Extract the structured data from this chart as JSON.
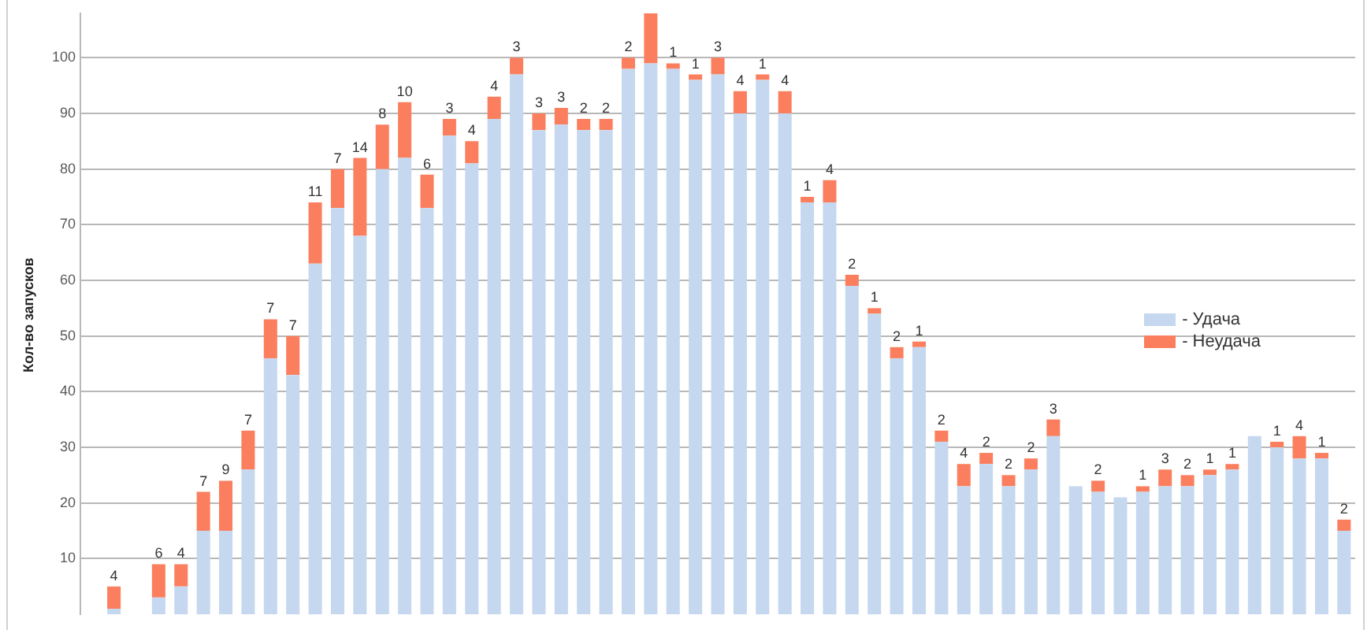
{
  "chart_data": {
    "type": "bar",
    "stacked": true,
    "ylabel": "Кол-во запусков",
    "categories": [
      null,
      null,
      null,
      null,
      null,
      null,
      null,
      null,
      null,
      null,
      null,
      null,
      null,
      null,
      null,
      null,
      null,
      null,
      null,
      null,
      null,
      null,
      null,
      null,
      null,
      null,
      null,
      null,
      null,
      null,
      null,
      null,
      null,
      null,
      null,
      null,
      null,
      null,
      null,
      null,
      null,
      null,
      null,
      null,
      null,
      null,
      null,
      null,
      null,
      null,
      null,
      null,
      null,
      null,
      null,
      null,
      null
    ],
    "series": [
      {
        "name": "- Удача",
        "color": "#c5d8ef",
        "values": [
          null,
          1,
          null,
          3,
          5,
          15,
          15,
          26,
          46,
          43,
          63,
          73,
          68,
          80,
          82,
          73,
          86,
          81,
          89,
          97,
          87,
          88,
          87,
          87,
          98,
          99,
          98,
          96,
          97,
          90,
          96,
          90,
          74,
          74,
          59,
          54,
          46,
          48,
          31,
          23,
          27,
          23,
          26,
          32,
          23,
          22,
          21,
          22,
          23,
          23,
          25,
          26,
          32,
          30,
          28,
          28,
          15
        ]
      },
      {
        "name": "- Неудача",
        "color": "#fb7f5f",
        "values": [
          null,
          4,
          null,
          6,
          4,
          7,
          9,
          7,
          7,
          7,
          11,
          7,
          14,
          8,
          10,
          6,
          3,
          4,
          4,
          3,
          3,
          3,
          2,
          2,
          2,
          9,
          1,
          1,
          3,
          4,
          1,
          4,
          1,
          4,
          2,
          1,
          2,
          1,
          2,
          4,
          2,
          2,
          2,
          3,
          0,
          2,
          0,
          1,
          3,
          2,
          1,
          1,
          0,
          1,
          4,
          1,
          2
        ],
        "value_labels": [
          null,
          "4",
          null,
          "6",
          "4",
          "7",
          "9",
          "7",
          "7",
          "7",
          "11",
          "7",
          "14",
          "8",
          "10",
          "6",
          "3",
          "4",
          "4",
          "3",
          "3",
          "3",
          "2",
          "2",
          "2",
          null,
          "1",
          "1",
          "3",
          "4",
          "1",
          "4",
          "1",
          "4",
          "2",
          "1",
          "2",
          "1",
          "2",
          "4",
          "2",
          "2",
          "2",
          "3",
          null,
          "2",
          null,
          "1",
          "3",
          "2",
          "1",
          "1",
          null,
          "1",
          "4",
          "1",
          "2"
        ]
      }
    ],
    "ylim": [
      0,
      108
    ],
    "yticks": [
      10,
      20,
      30,
      40,
      50,
      60,
      70,
      80,
      90,
      100
    ],
    "grid": "y",
    "legend": "right"
  }
}
